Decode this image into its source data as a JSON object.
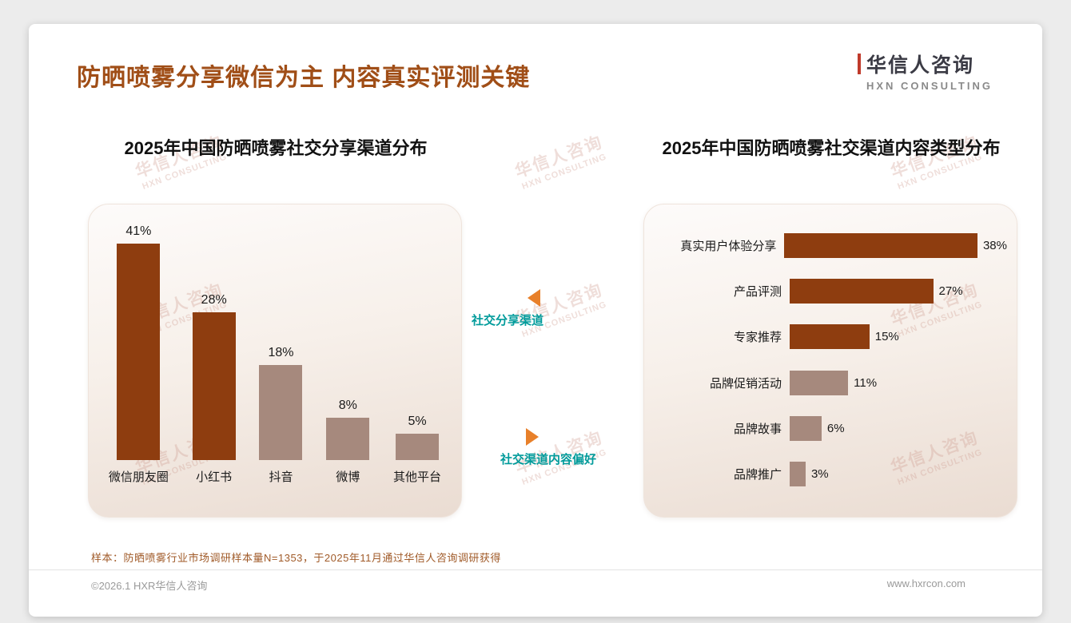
{
  "page": {
    "title": "防晒喷雾分享微信为主 内容真实评测关键",
    "logo": {
      "name": "华信人咨询",
      "sub": "HXN CONSULTING"
    },
    "annotations": [
      {
        "label": "社交分享渠道",
        "direction": "left"
      },
      {
        "label": "社交渠道内容偏好",
        "direction": "right"
      }
    ],
    "watermark": {
      "line1": "华信人咨询",
      "line2": "HXN CONSULTING"
    },
    "footer": {
      "note": "样本：防晒喷雾行业市场调研样本量N=1353，于2025年11月通过华信人咨询调研获得",
      "copyright": "©2026.1 HXR华信人咨询",
      "website": "www.hxrcon.com"
    }
  },
  "colors": {
    "title_brown": "#A04E17",
    "dark_bar": "#8E3D0F",
    "light_bar": "#A6897D",
    "teal": "#009B9B",
    "orange": "#E8802A"
  },
  "chart_data": [
    {
      "type": "bar",
      "title": "2025年中国防晒喷雾社交分享渠道分布",
      "categories": [
        "微信朋友圈",
        "小红书",
        "抖音",
        "微博",
        "其他平台"
      ],
      "values": [
        41,
        28,
        18,
        8,
        5
      ],
      "unit": "%",
      "ylim": [
        0,
        45
      ],
      "grid": false,
      "bar_colors": [
        "dark",
        "dark",
        "light",
        "light",
        "light"
      ]
    },
    {
      "type": "horizontal-bar",
      "title": "2025年中国防晒喷雾社交渠道内容类型分布",
      "categories": [
        "真实用户体验分享",
        "产品评测",
        "专家推荐",
        "品牌促销活动",
        "品牌故事",
        "品牌推广"
      ],
      "values": [
        38,
        27,
        15,
        11,
        6,
        3
      ],
      "unit": "%",
      "xlim": [
        0,
        40
      ],
      "grid": false,
      "bar_colors": [
        "dark",
        "dark",
        "dark",
        "light",
        "light",
        "light"
      ]
    }
  ]
}
